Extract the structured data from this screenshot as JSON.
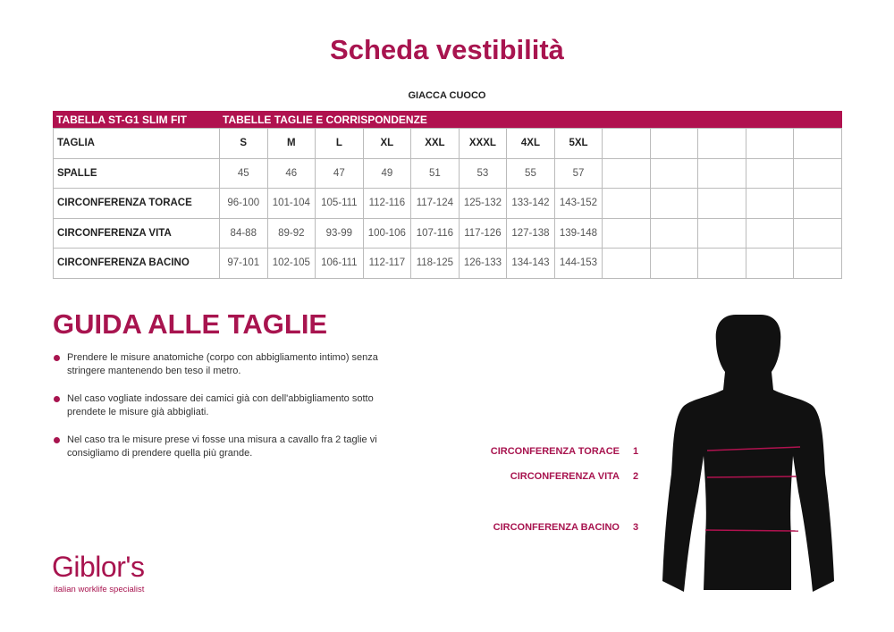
{
  "title": "Scheda vestibilità",
  "subtitle": "GIACCA CUOCO",
  "table": {
    "band_left": "TABELLA ST-G1 SLIM FIT",
    "band_right": "TABELLE TAGLIE E CORRISPONDENZE",
    "rows": [
      {
        "label": "TAGLIA",
        "values": [
          "S",
          "M",
          "L",
          "XL",
          "XXL",
          "XXXL",
          "4XL",
          "5XL"
        ]
      },
      {
        "label": "SPALLE",
        "values": [
          "45",
          "46",
          "47",
          "49",
          "51",
          "53",
          "55",
          "57"
        ]
      },
      {
        "label": "CIRCONFERENZA TORACE",
        "values": [
          "96-100",
          "101-104",
          "105-111",
          "112-116",
          "117-124",
          "125-132",
          "133-142",
          "143-152"
        ]
      },
      {
        "label": "CIRCONFERENZA VITA",
        "values": [
          "84-88",
          "89-92",
          "93-99",
          "100-106",
          "107-116",
          "117-126",
          "127-138",
          "139-148"
        ]
      },
      {
        "label": "CIRCONFERENZA BACINO",
        "values": [
          "97-101",
          "102-105",
          "106-111",
          "112-117",
          "118-125",
          "126-133",
          "134-143",
          "144-153"
        ]
      }
    ]
  },
  "guide": {
    "title": "GUIDA ALLE TAGLIE",
    "items": [
      "Prendere le misure anatomiche (corpo con abbigliamento intimo) senza stringere mantenendo ben teso il metro.",
      "Nel caso vogliate indossare dei camici già con dell'abbigliamento sotto prendete le misure già abbigliati.",
      "Nel caso tra le misure prese vi fosse una misura a cavallo fra 2 taglie vi consigliamo di prendere quella più grande."
    ]
  },
  "measurements": [
    {
      "label": "CIRCONFERENZA TORACE",
      "num": "1"
    },
    {
      "label": "CIRCONFERENZA VITA",
      "num": "2"
    },
    {
      "label": "CIRCONFERENZA BACINO",
      "num": "3"
    }
  ],
  "logo": {
    "name": "Giblor's",
    "tagline": "italian worklife specialist"
  },
  "colors": {
    "accent": "#a8144f"
  }
}
